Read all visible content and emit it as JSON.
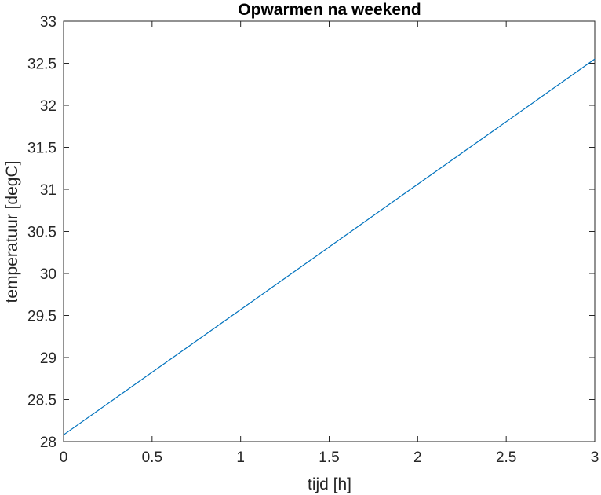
{
  "chart_data": {
    "type": "line",
    "title": "Opwarmen na weekend",
    "xlabel": "tijd [h]",
    "ylabel": "temperatuur [degC]",
    "xlim": [
      0,
      3
    ],
    "ylim": [
      28,
      33
    ],
    "x_ticks": [
      0,
      0.5,
      1,
      1.5,
      2,
      2.5,
      3
    ],
    "x_tick_labels": [
      "0",
      "0.5",
      "1",
      "1.5",
      "2",
      "2.5",
      "3"
    ],
    "y_ticks": [
      28,
      28.5,
      29,
      29.5,
      30,
      30.5,
      31,
      31.5,
      32,
      32.5,
      33
    ],
    "y_tick_labels": [
      "28",
      "28.5",
      "29",
      "29.5",
      "30",
      "30.5",
      "31",
      "31.5",
      "32",
      "32.5",
      "33"
    ],
    "grid": false,
    "colors": {
      "line": "#0072BD",
      "axes": "#262626"
    },
    "series": [
      {
        "x": [
          0,
          3
        ],
        "y": [
          28.08,
          32.55
        ]
      }
    ]
  }
}
